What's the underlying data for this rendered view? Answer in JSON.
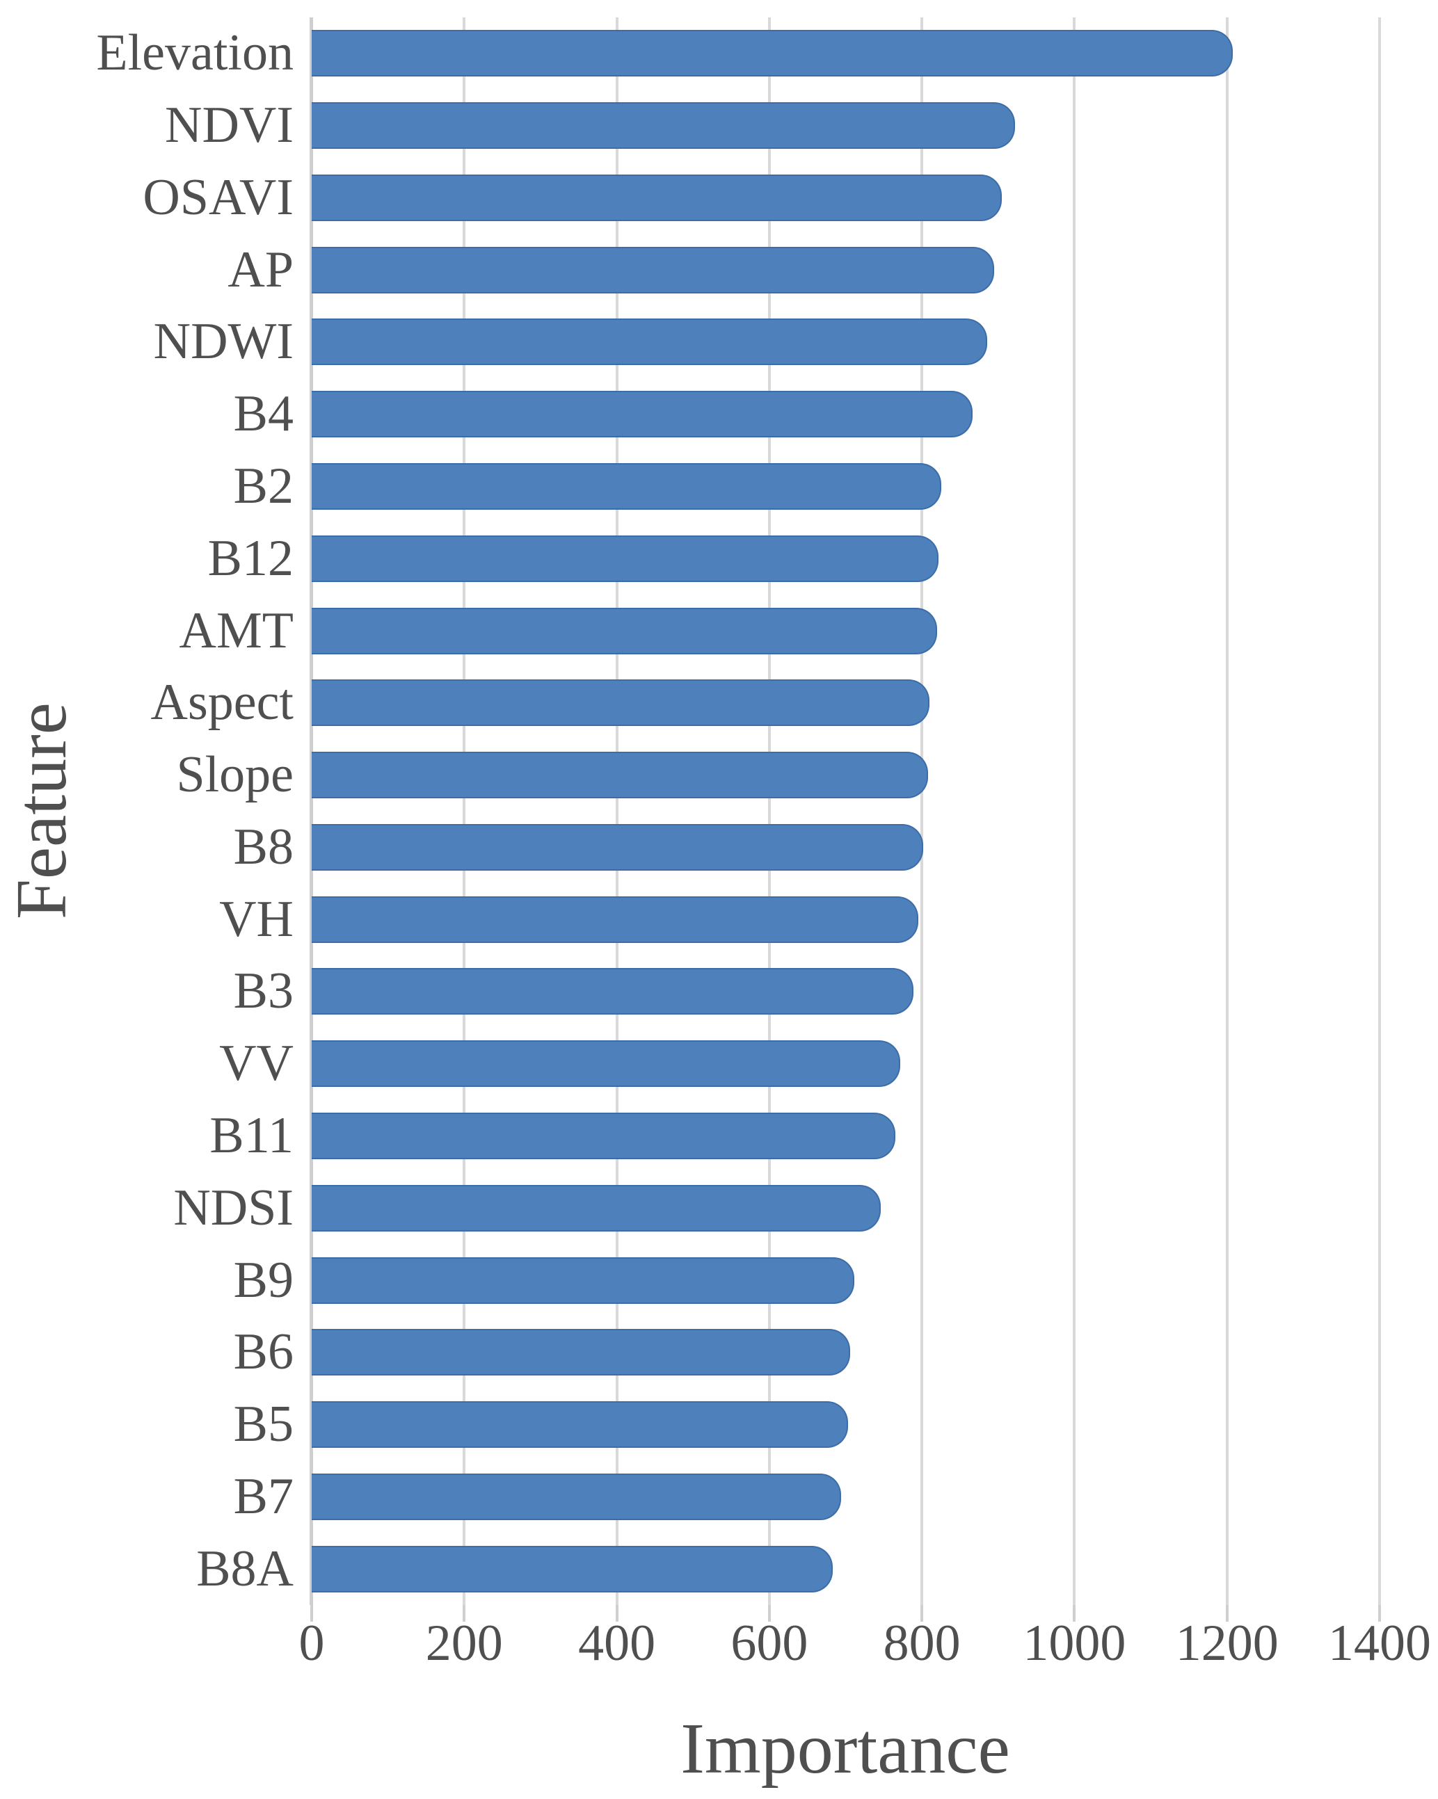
{
  "figure": {
    "bar_color": "#4e80bc",
    "bar_border_color": "#3d6da8",
    "gridline_color": "#d9d9d9",
    "axis_color": "#cfcfcf",
    "text_color": "#4f4f4f"
  },
  "chart_data": {
    "type": "bar",
    "orientation": "horizontal",
    "title": "",
    "xlabel": "Importance",
    "ylabel": "Feature",
    "categories": [
      "Elevation",
      "NDVI",
      "OSAVI",
      "AP",
      "NDWI",
      "B4",
      "B2",
      "B12",
      "AMT",
      "Aspect",
      "Slope",
      "B8",
      "VH",
      "B3",
      "VV",
      "B11",
      "NDSI",
      "B9",
      "B6",
      "B5",
      "B7",
      "B8A"
    ],
    "values": [
      1208,
      922,
      905,
      895,
      886,
      866,
      825,
      822,
      820,
      810,
      808,
      802,
      795,
      789,
      772,
      765,
      746,
      711,
      706,
      703,
      694,
      683
    ],
    "xlim": [
      0,
      1400
    ],
    "xticks": [
      "0",
      "200",
      "400",
      "600",
      "800",
      "1000",
      "1200",
      "1400"
    ],
    "grid": "vertical",
    "legend": null
  }
}
